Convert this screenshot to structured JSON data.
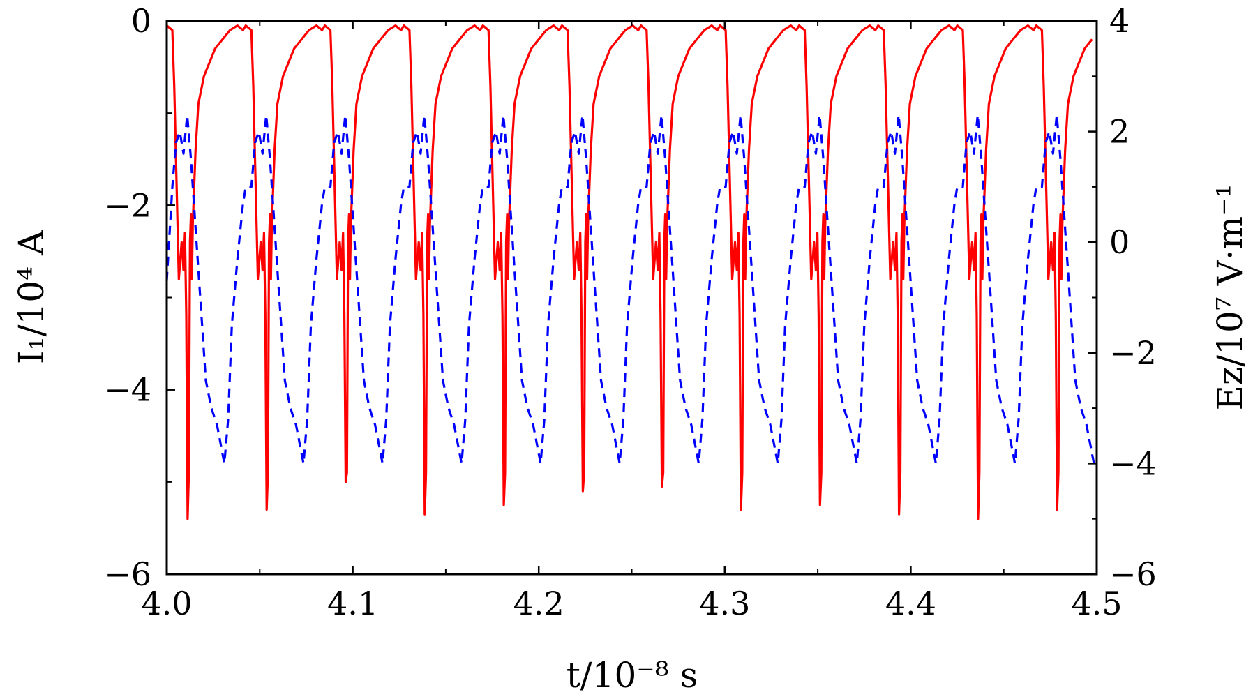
{
  "chart_data": {
    "type": "line",
    "title": "",
    "xlabel": "t/10⁻⁸ s",
    "ylabel_left": "I₁/10⁴ A",
    "ylabel_right": "Ez/10⁷ V·m⁻¹",
    "xlim": [
      4.0,
      4.5
    ],
    "ylim_left": [
      -6,
      0
    ],
    "ylim_right": [
      -6,
      4
    ],
    "x_ticks": [
      4.0,
      4.1,
      4.2,
      4.3,
      4.4,
      4.5
    ],
    "x_tick_labels": [
      "4.0",
      "4.1",
      "4.2",
      "4.3",
      "4.4",
      "4.5"
    ],
    "y_left_ticks": [
      0,
      -2,
      -4,
      -6
    ],
    "y_left_tick_labels": [
      "0",
      "−2",
      "−4",
      "−6"
    ],
    "y_right_ticks": [
      4,
      2,
      0,
      -2,
      -4,
      -6
    ],
    "y_right_tick_labels": [
      "4",
      "2",
      "0",
      "−2",
      "−4",
      "−6"
    ],
    "grid": false,
    "series": [
      {
        "name": "I1",
        "axis": "left",
        "color": "#ff0000",
        "style": "solid",
        "period": 0.0425,
        "x0": 4.0,
        "cycle_dx": [
          0,
          0.003,
          0.004,
          0.0065,
          0.008,
          0.009,
          0.0098,
          0.0105,
          0.0112,
          0.0119,
          0.0125,
          0.013,
          0.0135,
          0.014,
          0.0155,
          0.017,
          0.02,
          0.023,
          0.026,
          0.03,
          0.034,
          0.038,
          0.041,
          0.0425
        ],
        "cycle_y": [
          -0.05,
          -0.1,
          -0.7,
          -2.8,
          -2.4,
          -2.7,
          -2.3,
          -3.2,
          -5.2,
          -4.9,
          -2.4,
          -2.1,
          -2.8,
          -2.2,
          -1.4,
          -0.9,
          -0.6,
          -0.45,
          -0.3,
          -0.2,
          -0.1,
          -0.05,
          -0.1,
          -0.05
        ],
        "mins": [
          -5.4,
          -5.3,
          -5.0,
          -5.35,
          -5.25,
          -5.1,
          -5.05,
          -5.3,
          -5.25,
          -5.35
        ]
      },
      {
        "name": "Ez",
        "axis": "right",
        "color": "#0000ff",
        "style": "dashed",
        "period": 0.0425,
        "x0": 4.0,
        "cycle_dx": [
          0,
          0.003,
          0.005,
          0.007,
          0.009,
          0.011,
          0.013,
          0.015,
          0.017,
          0.019,
          0.021,
          0.024,
          0.027,
          0.031,
          0.033,
          0.035,
          0.038,
          0.041,
          0.0425
        ],
        "cycle_y": [
          -0.7,
          1.0,
          1.8,
          2.0,
          1.6,
          2.3,
          1.5,
          0.5,
          -0.5,
          -1.5,
          -2.5,
          -3.0,
          -3.3,
          -4.0,
          -3.2,
          -1.5,
          -0.3,
          0.7,
          1.0
        ]
      }
    ]
  }
}
